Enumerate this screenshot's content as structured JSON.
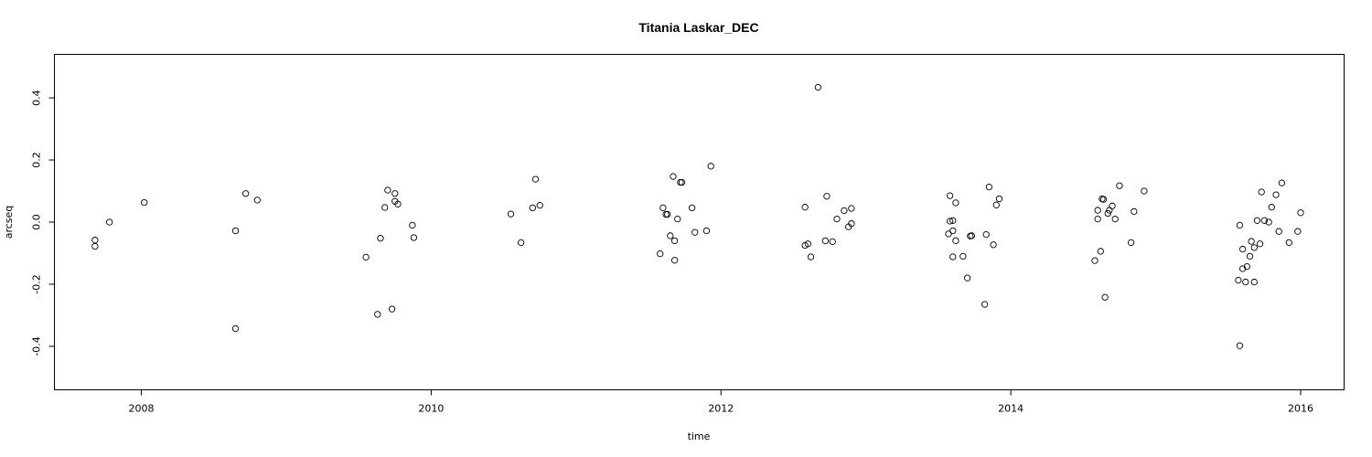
{
  "chart_data": {
    "type": "scatter",
    "title": "Titania Laskar_DEC",
    "xlabel": "time",
    "ylabel": "arcseq",
    "xlim": [
      2007.4,
      2016.3
    ],
    "ylim": [
      -0.54,
      0.54
    ],
    "xticks": [
      2008,
      2010,
      2012,
      2014,
      2016
    ],
    "xtick_labels": [
      "2008",
      "2010",
      "2012",
      "2014",
      "2016"
    ],
    "yticks": [
      -0.4,
      -0.2,
      0.0,
      0.2,
      0.4
    ],
    "ytick_labels": [
      "-0.4",
      "-0.2",
      "0.0",
      "0.2",
      "0.4"
    ],
    "grid": false,
    "legend": "none",
    "point_style": "open-circle",
    "series": [
      {
        "points": [
          [
            2007.68,
            -0.058
          ],
          [
            2007.68,
            -0.078
          ],
          [
            2007.78,
            0.0
          ],
          [
            2008.02,
            0.063
          ],
          [
            2008.65,
            -0.028
          ],
          [
            2008.65,
            -0.343
          ],
          [
            2008.72,
            0.092
          ],
          [
            2008.8,
            0.071
          ],
          [
            2009.55,
            -0.113
          ],
          [
            2009.63,
            -0.297
          ],
          [
            2009.65,
            -0.052
          ],
          [
            2009.68,
            0.047
          ],
          [
            2009.7,
            0.103
          ],
          [
            2009.73,
            -0.28
          ],
          [
            2009.75,
            0.067
          ],
          [
            2009.75,
            0.092
          ],
          [
            2009.77,
            0.058
          ],
          [
            2009.87,
            -0.01
          ],
          [
            2009.88,
            -0.05
          ],
          [
            2010.55,
            0.026
          ],
          [
            2010.62,
            -0.066
          ],
          [
            2010.7,
            0.046
          ],
          [
            2010.72,
            0.138
          ],
          [
            2010.75,
            0.054
          ],
          [
            2011.58,
            -0.102
          ],
          [
            2011.6,
            0.046
          ],
          [
            2011.62,
            0.025
          ],
          [
            2011.63,
            0.025
          ],
          [
            2011.65,
            -0.044
          ],
          [
            2011.67,
            0.147
          ],
          [
            2011.68,
            -0.123
          ],
          [
            2011.68,
            -0.06
          ],
          [
            2011.7,
            0.01
          ],
          [
            2011.72,
            0.128
          ],
          [
            2011.73,
            0.128
          ],
          [
            2011.8,
            0.046
          ],
          [
            2011.82,
            -0.033
          ],
          [
            2011.9,
            -0.028
          ],
          [
            2011.93,
            0.18
          ],
          [
            2012.58,
            0.048
          ],
          [
            2012.58,
            -0.075
          ],
          [
            2012.6,
            -0.07
          ],
          [
            2012.62,
            -0.112
          ],
          [
            2012.67,
            0.434
          ],
          [
            2012.72,
            -0.06
          ],
          [
            2012.73,
            0.083
          ],
          [
            2012.77,
            -0.063
          ],
          [
            2012.8,
            0.01
          ],
          [
            2012.85,
            0.037
          ],
          [
            2012.88,
            -0.015
          ],
          [
            2012.9,
            -0.005
          ],
          [
            2012.9,
            0.044
          ],
          [
            2013.57,
            -0.038
          ],
          [
            2013.58,
            0.003
          ],
          [
            2013.58,
            0.085
          ],
          [
            2013.6,
            0.005
          ],
          [
            2013.6,
            -0.112
          ],
          [
            2013.6,
            -0.028
          ],
          [
            2013.62,
            0.062
          ],
          [
            2013.62,
            -0.06
          ],
          [
            2013.67,
            -0.11
          ],
          [
            2013.7,
            -0.18
          ],
          [
            2013.72,
            -0.045
          ],
          [
            2013.73,
            -0.044
          ],
          [
            2013.82,
            -0.265
          ],
          [
            2013.83,
            -0.04
          ],
          [
            2013.85,
            0.113
          ],
          [
            2013.88,
            -0.073
          ],
          [
            2013.9,
            0.055
          ],
          [
            2013.92,
            0.075
          ],
          [
            2014.58,
            -0.124
          ],
          [
            2014.6,
            0.038
          ],
          [
            2014.6,
            0.01
          ],
          [
            2014.62,
            -0.094
          ],
          [
            2014.63,
            0.075
          ],
          [
            2014.64,
            0.073
          ],
          [
            2014.65,
            -0.242
          ],
          [
            2014.67,
            0.028
          ],
          [
            2014.68,
            0.038
          ],
          [
            2014.7,
            0.052
          ],
          [
            2014.72,
            0.01
          ],
          [
            2014.75,
            0.117
          ],
          [
            2014.83,
            -0.066
          ],
          [
            2014.85,
            0.034
          ],
          [
            2014.92,
            0.1
          ],
          [
            2015.57,
            -0.187
          ],
          [
            2015.58,
            -0.398
          ],
          [
            2015.58,
            -0.01
          ],
          [
            2015.6,
            -0.087
          ],
          [
            2015.6,
            -0.15
          ],
          [
            2015.62,
            -0.193
          ],
          [
            2015.63,
            -0.143
          ],
          [
            2015.65,
            -0.11
          ],
          [
            2015.66,
            -0.062
          ],
          [
            2015.68,
            -0.193
          ],
          [
            2015.68,
            -0.082
          ],
          [
            2015.7,
            0.005
          ],
          [
            2015.72,
            -0.07
          ],
          [
            2015.73,
            0.097
          ],
          [
            2015.75,
            0.005
          ],
          [
            2015.78,
            0.0
          ],
          [
            2015.8,
            0.048
          ],
          [
            2015.83,
            0.088
          ],
          [
            2015.85,
            -0.03
          ],
          [
            2015.87,
            0.126
          ],
          [
            2015.92,
            -0.066
          ],
          [
            2015.98,
            -0.03
          ],
          [
            2016.0,
            0.03
          ]
        ]
      }
    ]
  }
}
